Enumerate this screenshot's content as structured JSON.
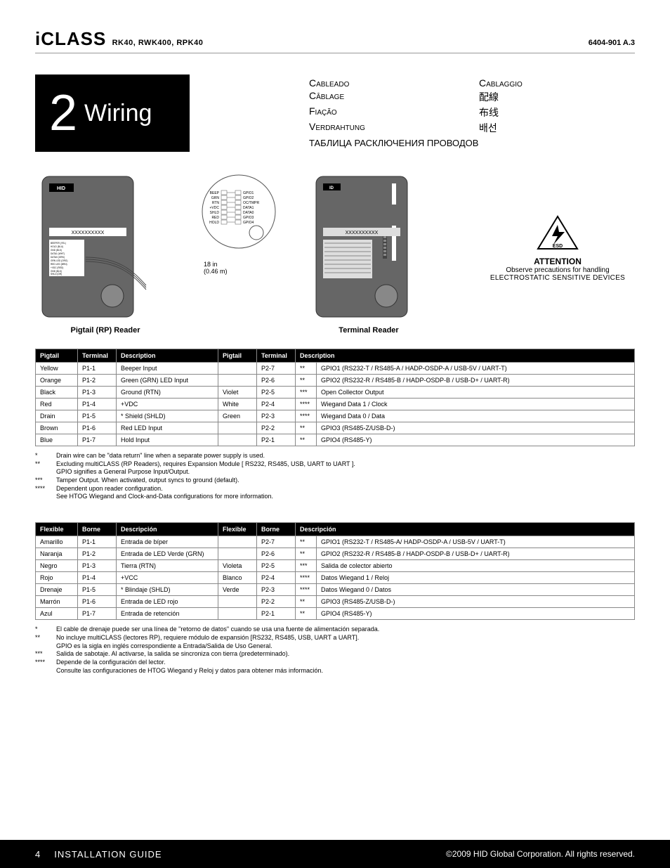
{
  "header": {
    "brand": "iCLASS",
    "models": "RK40, RWK400, RPK40",
    "docnum": "6404-901 A.3"
  },
  "section": {
    "number": "2",
    "title": "Wiring"
  },
  "translations": {
    "es": "Cableado",
    "it": "Cablaggio",
    "fr": "Câblage",
    "zh_TW": "配線",
    "pt": "Fiação",
    "zh_CN": "布线",
    "de": "Verdrahtung",
    "ko": "배선",
    "ru": "ТАБЛИЦА РАСКЛЮЧЕНИЯ ПРОВОДОВ"
  },
  "diagrams": {
    "pigtail_label": "Pigtail (RP) Reader",
    "terminal_label": "Terminal Reader",
    "cable_dim_in": "18 in",
    "cable_dim_m": "(0.46 m)",
    "hid_badge": "HID",
    "placeholder": "XXXXXXXXXX",
    "pin_labels_left": [
      "BEEP",
      "GRN",
      "RTN",
      "+VDC",
      "SHLD",
      "RED",
      "HOLD"
    ],
    "pin_labels_right": [
      "GPIO1",
      "GPIO2",
      "OC/TMPR",
      "DATA1",
      "DATA0",
      "GPIO3",
      "GPIO4"
    ]
  },
  "attention": {
    "title": "ATTENTION",
    "line1": "Observe precautions for handling",
    "line2": "ELECTROSTATIC SENSITIVE DEVICES",
    "badge": "ESD"
  },
  "tables": {
    "en": {
      "headers": {
        "pigtail": "Pigtail",
        "terminal": "Terminal",
        "description": "Description"
      },
      "rows_left": [
        {
          "pig": "Yellow",
          "term": "P1-1",
          "desc": "Beeper Input"
        },
        {
          "pig": "Orange",
          "term": "P1-2",
          "desc": "Green (GRN) LED Input"
        },
        {
          "pig": "Black",
          "term": "P1-3",
          "desc": "Ground (RTN)"
        },
        {
          "pig": "Red",
          "term": "P1-4",
          "desc": "+VDC"
        },
        {
          "pig": "Drain",
          "term": "P1-5",
          "desc": "* Shield (SHLD)"
        },
        {
          "pig": "Brown",
          "term": "P1-6",
          "desc": "Red LED Input"
        },
        {
          "pig": "Blue",
          "term": "P1-7",
          "desc": "Hold Input"
        }
      ],
      "rows_right": [
        {
          "pig": "",
          "term": "P2-7",
          "mark": "**",
          "desc": "GPIO1 (RS232-T / RS485-A / HADP-OSDP-A / USB-5V / UART-T)"
        },
        {
          "pig": "",
          "term": "P2-6",
          "mark": "**",
          "desc": "GPIO2 (RS232-R / RS485-B / HADP-OSDP-B / USB-D+ / UART-R)"
        },
        {
          "pig": "Violet",
          "term": "P2-5",
          "mark": "***",
          "desc": "Open Collector Output"
        },
        {
          "pig": "White",
          "term": "P2-4",
          "mark": "****",
          "desc": "Wiegand Data 1 / Clock"
        },
        {
          "pig": "Green",
          "term": "P2-3",
          "mark": "****",
          "desc": "Wiegand Data 0 / Data"
        },
        {
          "pig": "",
          "term": "P2-2",
          "mark": "**",
          "desc": "GPIO3 (RS485-Z/USB-D-)"
        },
        {
          "pig": "",
          "term": "P2-1",
          "mark": "**",
          "desc": "GPIO4 (RS485-Y)"
        }
      ],
      "notes": [
        {
          "mark": "*",
          "text": "Drain wire can be  \"data return\" line when a separate power supply is used."
        },
        {
          "mark": "**",
          "text": "Excluding multiCLASS (RP Readers), requires Expansion Module [ RS232, RS485, USB, UART to UART ]."
        },
        {
          "mark": "",
          "text": "GPIO signifies a General Purpose Input/Output."
        },
        {
          "mark": "***",
          "text": "Tamper Output. When activated, output syncs to ground (default)."
        },
        {
          "mark": "****",
          "text": "Dependent upon reader configuration."
        },
        {
          "mark": "",
          "text": "See HTOG Wiegand and Clock-and-Data configurations for more information."
        }
      ]
    },
    "es": {
      "headers": {
        "pigtail": "Flexible",
        "terminal": "Borne",
        "description": "Descripción"
      },
      "rows_left": [
        {
          "pig": "Amarillo",
          "term": "P1-1",
          "desc": "Entrada de bíper"
        },
        {
          "pig": "Naranja",
          "term": "P1-2",
          "desc": "Entrada de LED Verde (GRN)"
        },
        {
          "pig": "Negro",
          "term": "P1-3",
          "desc": "Tierra (RTN)"
        },
        {
          "pig": "Rojo",
          "term": "P1-4",
          "desc": "+VCC"
        },
        {
          "pig": "Drenaje",
          "term": "P1-5",
          "desc": "* Blindaje (SHLD)"
        },
        {
          "pig": "Marrón",
          "term": "P1-6",
          "desc": "Entrada de LED rojo"
        },
        {
          "pig": "Azul",
          "term": "P1-7",
          "desc": "Entrada de retención"
        }
      ],
      "rows_right": [
        {
          "pig": "",
          "term": "P2-7",
          "mark": "**",
          "desc": "GPIO1 (RS232-T / RS485-A/ HADP-OSDP-A / USB-5V / UART-T)"
        },
        {
          "pig": "",
          "term": "P2-6",
          "mark": "**",
          "desc": "GPIO2 (RS232-R / RS485-B / HADP-OSDP-B / USB-D+ / UART-R)"
        },
        {
          "pig": "Violeta",
          "term": "P2-5",
          "mark": "***",
          "desc": "Salida de colector abierto"
        },
        {
          "pig": "Blanco",
          "term": "P2-4",
          "mark": "****",
          "desc": "Datos Wiegand 1 / Reloj"
        },
        {
          "pig": "Verde",
          "term": "P2-3",
          "mark": "****",
          "desc": "Datos Wiegand 0 / Datos"
        },
        {
          "pig": "",
          "term": "P2-2",
          "mark": "**",
          "desc": "GPIO3 (RS485-Z/USB-D-)"
        },
        {
          "pig": "",
          "term": "P2-1",
          "mark": "**",
          "desc": "GPIO4 (RS485-Y)"
        }
      ],
      "notes": [
        {
          "mark": "*",
          "text": "El cable de drenaje puede ser una línea de \"retorno de datos\" cuando se usa una fuente de alimentación separada."
        },
        {
          "mark": "**",
          "text": "No incluye multiCLASS (lectores RP), requiere módulo de expansión [RS232, RS485, USB, UART a UART]."
        },
        {
          "mark": "",
          "text": "GPIO es la sigla en inglés correspondiente a Entrada/Salida de Uso General."
        },
        {
          "mark": "***",
          "text": "Salida de sabotaje. Al activarse, la salida se sincroniza con tierra (predeterminado)."
        },
        {
          "mark": "****",
          "text": "Depende de la configuración del lector."
        },
        {
          "mark": "",
          "text": "Consulte las configuraciones de HTOG Wiegand y Reloj y datos para obtener más información."
        }
      ]
    }
  },
  "footer": {
    "page": "4",
    "guide": "INSTALLATION GUIDE",
    "copyright": "©2009 HID Global Corporation. All rights reserved."
  },
  "colors": {
    "black": "#000000",
    "grey_border": "#888888",
    "grey_fill": "#666666",
    "light_grey": "#cccccc"
  }
}
